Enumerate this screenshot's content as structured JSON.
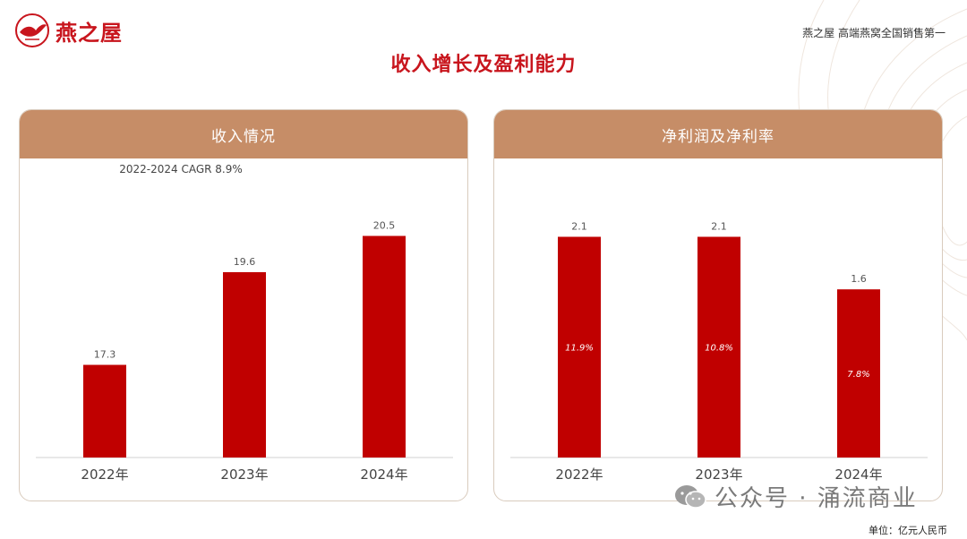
{
  "brand": {
    "name": "燕之屋",
    "tagline": "燕之屋 高端燕窝全国销售第一",
    "color": "#c8151d"
  },
  "page_title": "收入增长及盈利能力",
  "watermark": {
    "icon": "wechat-icon",
    "text": "公众号 · 涌流商业"
  },
  "unit": "单位：亿元人民币",
  "colors": {
    "bar": "#c00000",
    "header": "#c68d67"
  },
  "chart_data": [
    {
      "type": "bar",
      "title": "收入情况",
      "subtitle": "2022-2024 CAGR 8.9%",
      "categories": [
        "2022年",
        "2023年",
        "2024年"
      ],
      "values": [
        17.3,
        19.6,
        20.5
      ],
      "value_labels": [
        "17.3",
        "19.6",
        "20.5"
      ],
      "ylim": [
        15,
        21
      ],
      "grid": false,
      "legend": "none"
    },
    {
      "type": "bar",
      "title": "净利润及净利率",
      "categories": [
        "2022年",
        "2023年",
        "2024年"
      ],
      "values": [
        2.1,
        2.1,
        1.6
      ],
      "value_labels": [
        "2.1",
        "2.1",
        "1.6"
      ],
      "inner_labels": [
        "11.9%",
        "10.8%",
        "7.8%"
      ],
      "ylim": [
        0,
        2.3
      ],
      "grid": false,
      "legend": "none"
    }
  ]
}
